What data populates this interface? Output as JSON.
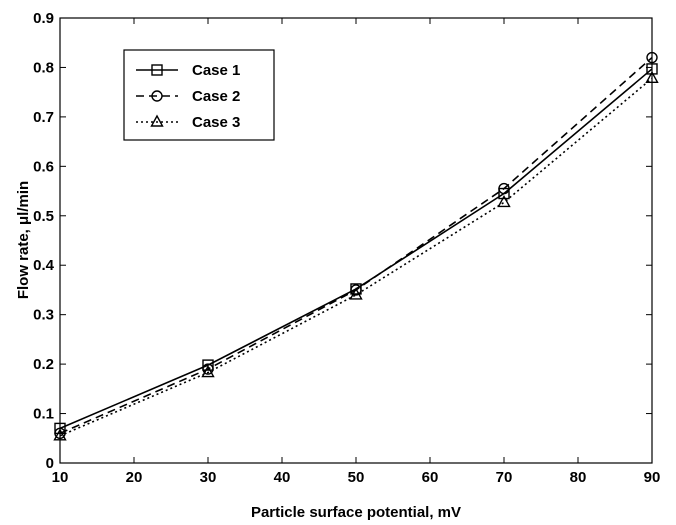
{
  "chart_data": {
    "type": "line",
    "title": "",
    "xlabel": "Particle surface potential,  mV",
    "ylabel": "Flow rate,  μl/min",
    "xlim": [
      10,
      90
    ],
    "ylim": [
      0,
      0.9
    ],
    "x_ticks": [
      10,
      20,
      30,
      40,
      50,
      60,
      70,
      80,
      90
    ],
    "y_ticks": [
      0,
      0.1,
      0.2,
      0.3,
      0.4,
      0.5,
      0.6,
      0.7,
      0.8,
      0.9
    ],
    "x_tick_labels": [
      "10",
      "20",
      "30",
      "40",
      "50",
      "60",
      "70",
      "80",
      "90"
    ],
    "y_tick_labels": [
      "0",
      "0.1",
      "0.2",
      "0.3",
      "0.4",
      "0.5",
      "0.6",
      "0.7",
      "0.8",
      "0.9"
    ],
    "grid": false,
    "legend_position": "top-left",
    "x": [
      10,
      30,
      50,
      70,
      90
    ],
    "series": [
      {
        "name": "Case 1",
        "values": [
          0.07,
          0.198,
          0.352,
          0.545,
          0.797
        ],
        "line_style": "solid",
        "marker": "square",
        "color": "#000000"
      },
      {
        "name": "Case 2",
        "values": [
          0.06,
          0.19,
          0.35,
          0.555,
          0.82
        ],
        "line_style": "dashed",
        "marker": "circle",
        "color": "#000000"
      },
      {
        "name": "Case 3",
        "values": [
          0.055,
          0.183,
          0.34,
          0.527,
          0.778
        ],
        "line_style": "dotted",
        "marker": "triangle",
        "color": "#000000"
      }
    ]
  }
}
